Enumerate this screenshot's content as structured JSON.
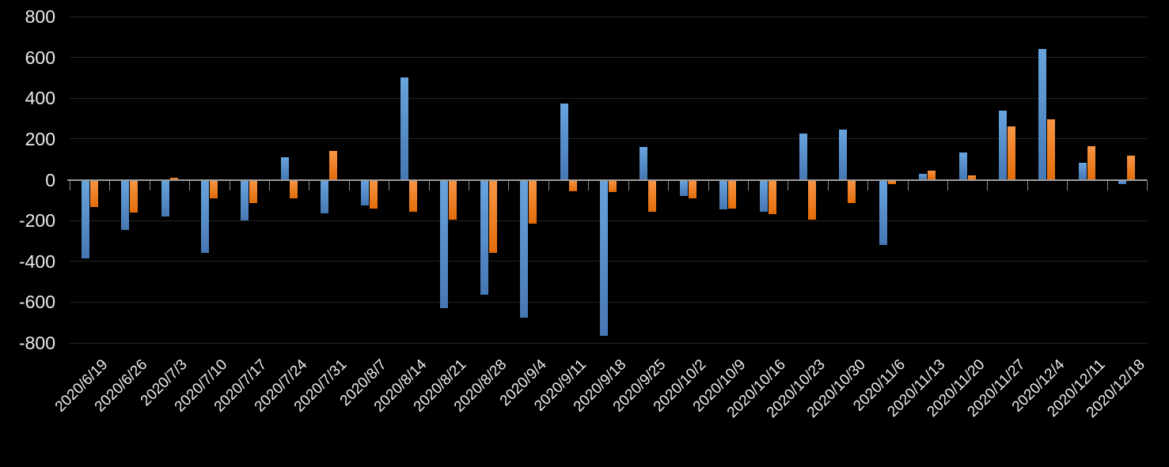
{
  "chart_data": {
    "type": "bar",
    "title": "",
    "xlabel": "",
    "ylabel": "",
    "categories": [
      "2020/6/19",
      "2020/6/26",
      "2020/7/3",
      "2020/7/10",
      "2020/7/17",
      "2020/7/24",
      "2020/7/31",
      "2020/8/7",
      "2020/8/14",
      "2020/8/21",
      "2020/8/28",
      "2020/9/4",
      "2020/9/11",
      "2020/9/18",
      "2020/9/25",
      "2020/10/2",
      "2020/10/9",
      "2020/10/16",
      "2020/10/23",
      "2020/10/30",
      "2020/11/6",
      "2020/11/13",
      "2020/11/20",
      "2020/11/27",
      "2020/12/4",
      "2020/12/11",
      "2020/12/18"
    ],
    "series": [
      {
        "name": "blue",
        "color": "#5B9BD5",
        "values": [
          -385,
          -245,
          -180,
          -360,
          -200,
          110,
          -165,
          -125,
          500,
          -630,
          -565,
          -675,
          375,
          -765,
          160,
          -80,
          -145,
          -155,
          225,
          245,
          -320,
          30,
          135,
          340,
          640,
          85,
          -20
        ]
      },
      {
        "name": "orange",
        "color": "#ED7D31",
        "values": [
          -135,
          -160,
          10,
          -90,
          -115,
          -90,
          140,
          -140,
          -155,
          -195,
          -360,
          -215,
          -55,
          -60,
          -155,
          -90,
          -140,
          -170,
          -195,
          -115,
          -20,
          45,
          20,
          260,
          295,
          165,
          120
        ]
      }
    ],
    "ylim": [
      -800,
      800
    ],
    "ytick_step": 200,
    "yticks": [
      800,
      600,
      400,
      200,
      0,
      -200,
      -400,
      -600,
      -800
    ],
    "grid": true,
    "legend": false,
    "background_color": "#000000",
    "gridline_color": "#242424",
    "axis_line_color": "#9c9c9c",
    "label_color": "#ececec"
  }
}
